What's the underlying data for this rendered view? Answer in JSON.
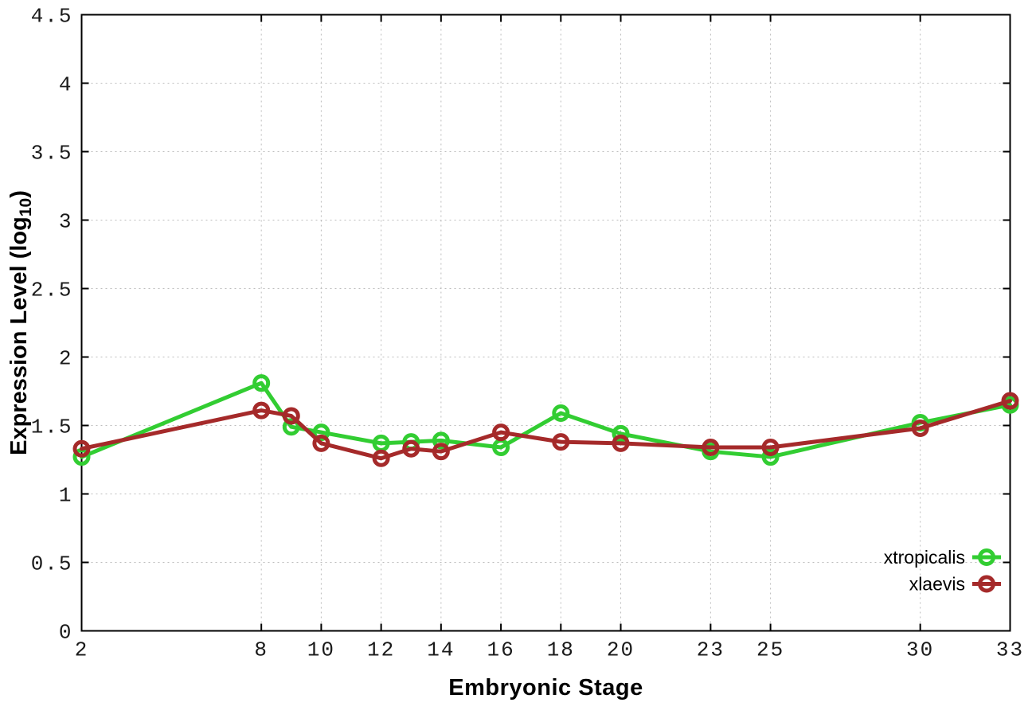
{
  "figure": {
    "background_color": "#ffffff",
    "border_color": "#000000",
    "grid_color": "#bcbcbc",
    "tick_label_color": "#1a1a1a"
  },
  "chart_data": {
    "type": "line",
    "title": "",
    "xlabel": "Embryonic Stage",
    "ylabel": "Expression Level (log10)",
    "ylabel_pre": "Expression Level (log",
    "ylabel_sub": "10",
    "ylabel_post": ")",
    "xlim": [
      2,
      33
    ],
    "ylim": [
      0,
      4.5
    ],
    "grid": true,
    "legend_position": "inside-bottom-right",
    "xticks": [
      2,
      8,
      10,
      12,
      14,
      16,
      18,
      20,
      23,
      25,
      30,
      33
    ],
    "xtick_labels": [
      "2",
      "8",
      "10",
      "12",
      "14",
      "16",
      "18",
      "20",
      "23",
      "25",
      "30",
      "33"
    ],
    "yticks": [
      0,
      0.5,
      1,
      1.5,
      2,
      2.5,
      3,
      3.5,
      4,
      4.5
    ],
    "ytick_labels": [
      "0",
      "0.5",
      "1",
      "1.5",
      "2",
      "2.5",
      "3",
      "3.5",
      "4",
      "4.5"
    ],
    "x": [
      2,
      8,
      9,
      10,
      12,
      13,
      14,
      16,
      18,
      20,
      23,
      25,
      30,
      33
    ],
    "series": [
      {
        "name": "xtropicalis",
        "color": "#32CD32",
        "marker": "open-circle",
        "values": [
          1.27,
          1.81,
          1.49,
          1.45,
          1.37,
          1.38,
          1.39,
          1.34,
          1.59,
          1.44,
          1.31,
          1.27,
          1.52,
          1.65
        ]
      },
      {
        "name": "xlaevis",
        "color": "#A52A2A",
        "marker": "open-circle",
        "values": [
          1.33,
          1.61,
          1.57,
          1.37,
          1.26,
          1.33,
          1.31,
          1.45,
          1.38,
          1.37,
          1.34,
          1.34,
          1.48,
          1.68
        ]
      }
    ]
  }
}
